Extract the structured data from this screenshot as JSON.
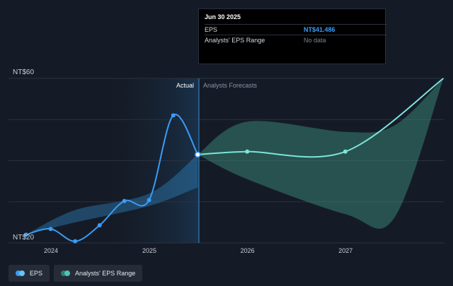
{
  "chart_data": {
    "type": "line",
    "y_axis": {
      "top_label": "NT$60",
      "bottom_label": "NT$20",
      "ylim": [
        20,
        60
      ],
      "grid": true
    },
    "x_axis": {
      "tick_labels": [
        "2024",
        "2025",
        "2026",
        "2027"
      ]
    },
    "sections": {
      "actual": "Actual",
      "forecast": "Analysts Forecasts"
    },
    "series": [
      {
        "name": "EPS",
        "color": "#3b9cf5",
        "points": [
          [
            "2023-09-30",
            22.0
          ],
          [
            "2023-12-31",
            23.4
          ],
          [
            "2024-03-31",
            20.4
          ],
          [
            "2024-06-30",
            24.3
          ],
          [
            "2024-09-30",
            30.2
          ],
          [
            "2024-12-31",
            30.4
          ],
          [
            "2025-03-31",
            51.0
          ],
          [
            "2025-06-30",
            41.486
          ]
        ]
      },
      {
        "name": "EPS forecast",
        "color": "#7de3de",
        "points": [
          [
            "2025-06-30",
            41.486
          ],
          [
            "2025-12-31",
            42.2
          ],
          [
            "2026-12-31",
            42.2
          ],
          [
            "2027-12-31",
            60.0
          ]
        ]
      }
    ],
    "ranges": [
      {
        "name": "Analysts' EPS Range",
        "color": "#2f7fb8",
        "upper": [
          [
            "2023-09-30",
            22.0
          ],
          [
            "2024-03-31",
            28.0
          ],
          [
            "2024-12-31",
            32.0
          ],
          [
            "2025-06-30",
            41.486
          ]
        ],
        "lower": [
          [
            "2023-09-30",
            22.0
          ],
          [
            "2024-03-31",
            25.0
          ],
          [
            "2024-12-31",
            29.0
          ],
          [
            "2025-06-30",
            33.5
          ]
        ]
      },
      {
        "name": "Analysts' EPS Range",
        "color": "#3a8a78",
        "upper": [
          [
            "2025-06-30",
            41.486
          ],
          [
            "2025-12-31",
            49.5
          ],
          [
            "2026-12-31",
            47.0
          ],
          [
            "2027-06-30",
            48.5
          ],
          [
            "2027-12-31",
            60.0
          ]
        ],
        "lower": [
          [
            "2025-06-30",
            41.486
          ],
          [
            "2025-12-31",
            35.5
          ],
          [
            "2026-12-31",
            27.0
          ],
          [
            "2027-06-30",
            26.0
          ],
          [
            "2027-12-31",
            60.0
          ]
        ]
      }
    ]
  },
  "tooltip": {
    "date": "Jun 30 2025",
    "rows": [
      {
        "label": "EPS",
        "value": "NT$41.486"
      },
      {
        "label": "Analysts' EPS Range",
        "value": "No data"
      }
    ]
  },
  "legend": [
    {
      "label": "EPS",
      "colors": [
        "#3b9cf5",
        "#65c3ff"
      ]
    },
    {
      "label": "Analysts' EPS Range",
      "colors": [
        "#2c7e74",
        "#4fc3b5"
      ]
    }
  ]
}
